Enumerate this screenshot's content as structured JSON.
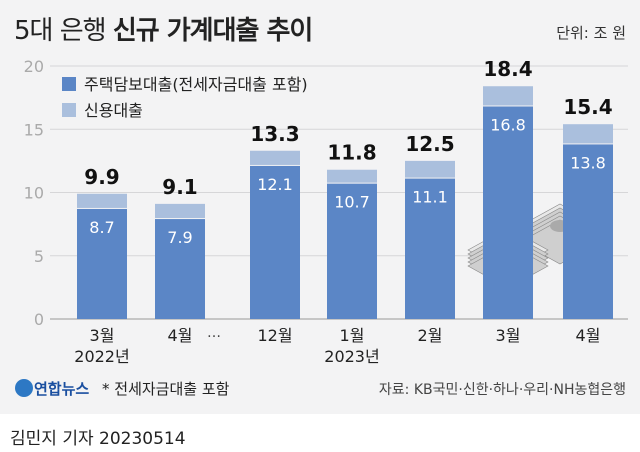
{
  "header": {
    "title_light": "5대 은행",
    "title_bold": "신규 가계대출 추이",
    "unit": "단위: 조 원"
  },
  "footer": {
    "logo": "연합뉴스",
    "note": "* 전세자금대출 포함",
    "source": "자료: KB국민·신한·하나·우리·NH농협은행",
    "credit": "김민지 기자  20230514"
  },
  "chart_data": {
    "type": "bar",
    "stacked": true,
    "categories": [
      "3월",
      "4월",
      "12월",
      "1월",
      "2월",
      "3월",
      "4월"
    ],
    "year_labels": [
      {
        "index": 0,
        "text": "2022년"
      },
      {
        "index": 3,
        "text": "2023년"
      }
    ],
    "gap_label": "…",
    "series": [
      {
        "name": "주택담보대출(전세자금대출 포함)",
        "color": "#5b86c6",
        "values": [
          8.7,
          7.9,
          12.1,
          10.7,
          11.1,
          16.8,
          13.8
        ]
      },
      {
        "name": "신용대출",
        "color": "#aabfdd",
        "values": [
          1.2,
          1.2,
          1.2,
          1.1,
          1.4,
          1.6,
          1.6
        ]
      }
    ],
    "totals": [
      9.9,
      9.1,
      13.3,
      11.8,
      12.5,
      18.4,
      15.4
    ],
    "ylim": [
      0,
      20
    ],
    "yticks": [
      0,
      5,
      10,
      15,
      20
    ],
    "grid": true,
    "legend": "top-left"
  }
}
